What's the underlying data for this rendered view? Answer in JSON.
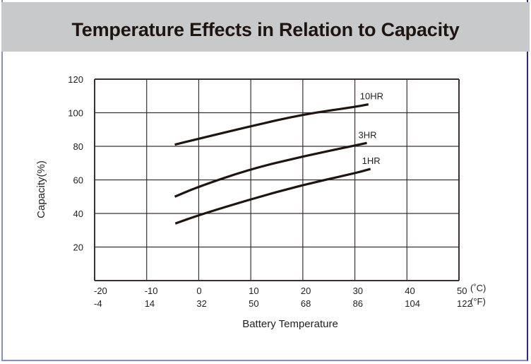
{
  "chart_data": {
    "type": "line",
    "title": "Temperature Effects in Relation to Capacity",
    "xlabel": "Battery Temperature",
    "ylabel": "Capacity(%)",
    "xlim": [
      -20,
      50
    ],
    "ylim": [
      0,
      120
    ],
    "grid": true,
    "x_ticks_c": [
      "-20",
      "-10",
      "0",
      "10",
      "20",
      "30",
      "40",
      "50"
    ],
    "x_ticks_f": [
      "-4",
      "14",
      "32",
      "50",
      "68",
      "86",
      "104",
      "122"
    ],
    "x_unit_c": "(˚C)",
    "x_unit_f": "(°F)",
    "y_ticks": [
      "120",
      "100",
      "80",
      "60",
      "40",
      "20"
    ],
    "series": [
      {
        "name": "10HR",
        "x": [
          -4.6,
          0,
          10,
          20,
          30,
          32.6
        ],
        "values": [
          81,
          84.5,
          92,
          99,
          103.5,
          105
        ]
      },
      {
        "name": "3HR",
        "x": [
          -4.6,
          0,
          10,
          20,
          30,
          32.3
        ],
        "values": [
          50,
          56,
          66.5,
          74,
          80.5,
          82
        ]
      },
      {
        "name": "1HR",
        "x": [
          -4.5,
          0,
          10,
          20,
          30,
          33
        ],
        "values": [
          34,
          39,
          48.5,
          57,
          64,
          66.5
        ]
      }
    ]
  },
  "colors": {
    "title_bar": "#c8c9cb",
    "line": "#1e1510",
    "grid": "#3a3030"
  }
}
